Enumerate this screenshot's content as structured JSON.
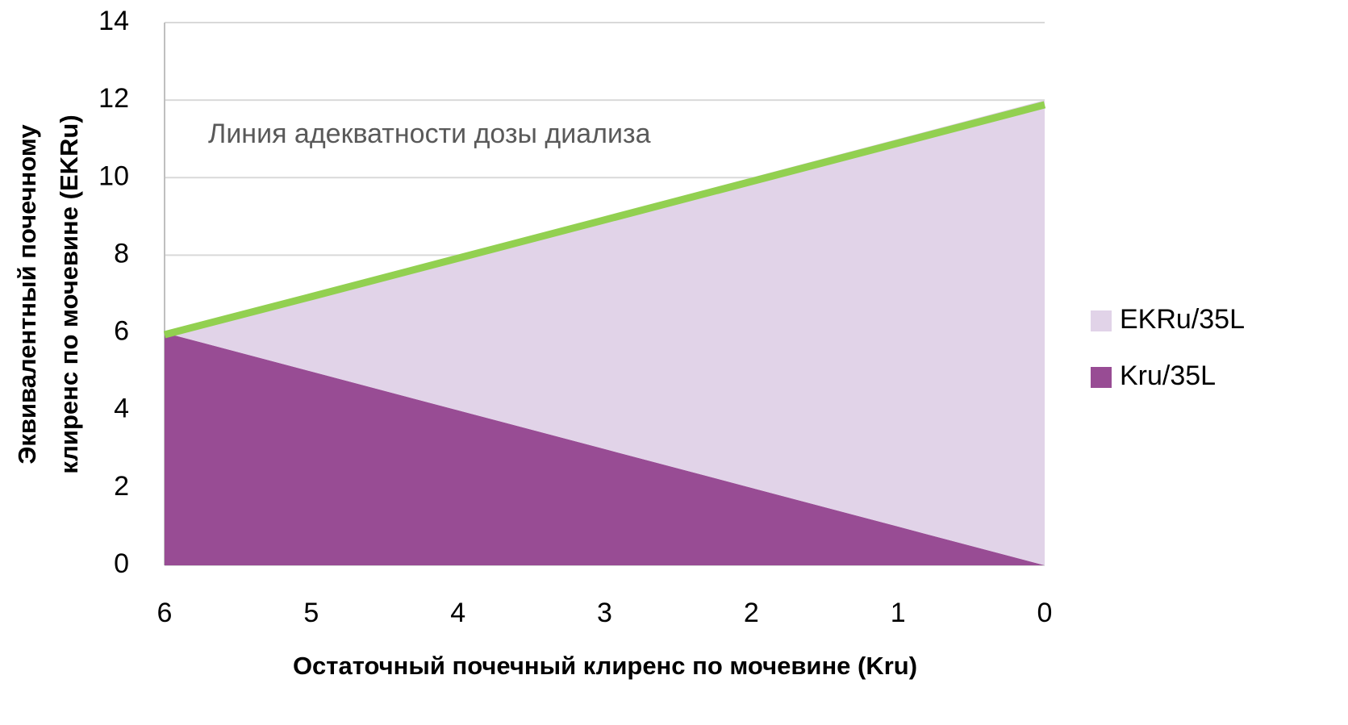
{
  "chart_data": {
    "type": "stacked_area",
    "y_label": [
      "Эквивалентный почечному",
      "клиренс по мочевине (EKRu)"
    ],
    "x_label": "Остаточный почечный клиренс по мочевине (Kru)",
    "annotation": "Линия адекватности дозы диализа",
    "categories": [
      "6",
      "5",
      "4",
      "3",
      "2",
      "1",
      "0"
    ],
    "series": [
      {
        "name": "Kru/35L",
        "color": "#984c94",
        "values": [
          6,
          5,
          4,
          3,
          2,
          1,
          0
        ]
      },
      {
        "name": "EKRu/35L",
        "color": "#e1d3e8",
        "values": [
          0,
          2,
          4,
          6,
          8,
          10,
          12
        ]
      }
    ],
    "adequacy_line": {
      "color": "#92d050",
      "values": [
        5.95,
        6.93,
        7.92,
        8.91,
        9.9,
        10.89,
        11.88
      ]
    },
    "ylim": [
      0,
      14
    ],
    "yticks": [
      0,
      2,
      4,
      6,
      8,
      10,
      12,
      14
    ],
    "grid": true
  }
}
